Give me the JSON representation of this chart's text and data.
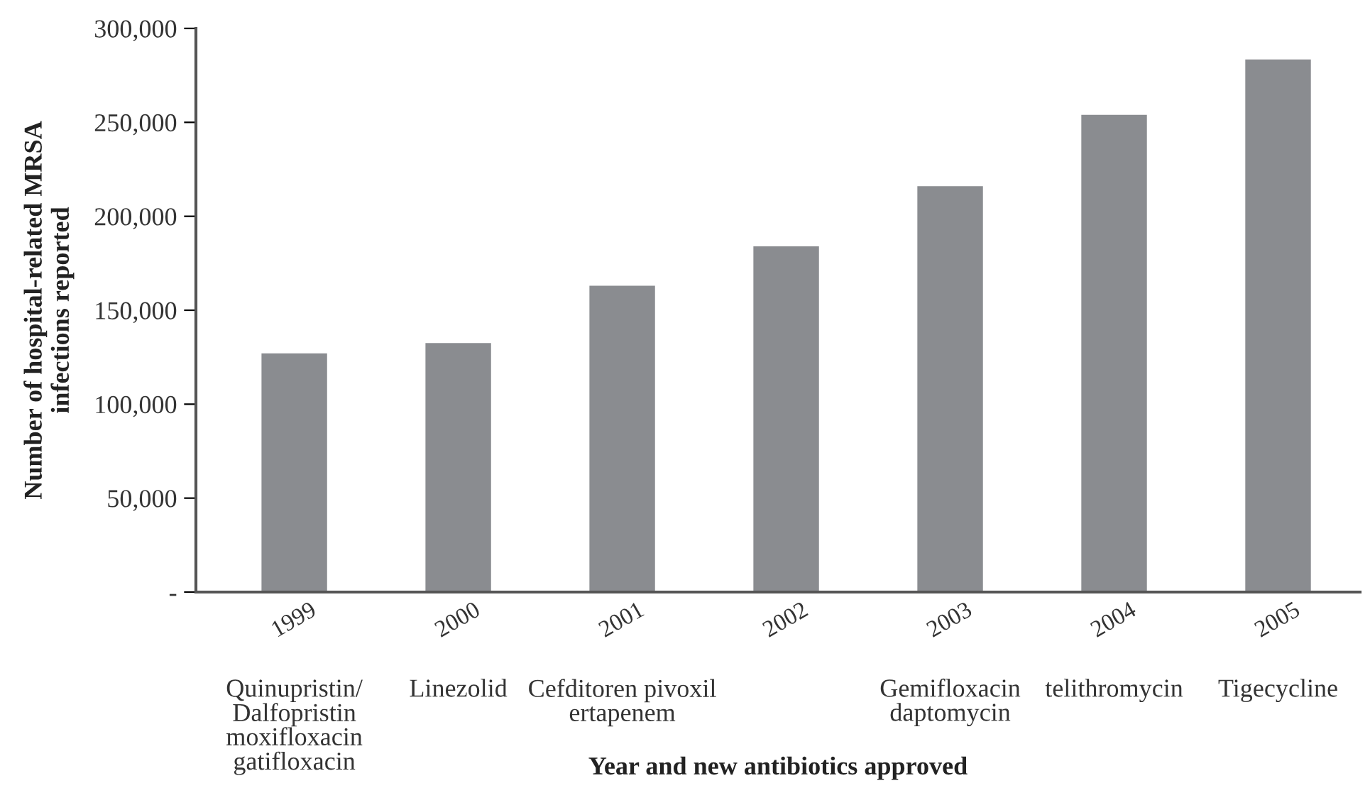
{
  "chart_data": {
    "type": "bar",
    "categories": [
      "1999",
      "2000",
      "2001",
      "2002",
      "2003",
      "2004",
      "2005"
    ],
    "values": [
      127000,
      132500,
      163000,
      184000,
      216000,
      254000,
      283500
    ],
    "color": "#8a8c90",
    "xlabel": "Year and new antibiotics approved",
    "ylabel": "Number of hospital-related MRSA\ninfections reported",
    "ylim": [
      0,
      300000
    ],
    "yticks": [
      {
        "value": 0,
        "label": "-"
      },
      {
        "value": 50000,
        "label": "50,000"
      },
      {
        "value": 100000,
        "label": "100,000"
      },
      {
        "value": 150000,
        "label": "150,000"
      },
      {
        "value": 200000,
        "label": "200,000"
      },
      {
        "value": 250000,
        "label": "250,000"
      },
      {
        "value": 300000,
        "label": "300,000"
      }
    ],
    "annotations": [
      "Quinupristin/\nDalfopristin\nmoxifloxacin\ngatifloxacin",
      "Linezolid",
      "Cefditoren pivoxil\nertapenem",
      null,
      "Gemifloxacin\ndaptomycin",
      "telithromycin",
      "Tigecycline"
    ],
    "grid": false
  }
}
